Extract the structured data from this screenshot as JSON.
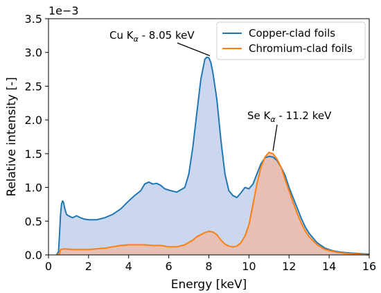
{
  "chart_data": {
    "type": "area",
    "xlabel": "Energy [keV]",
    "ylabel": "Relative intensity [-]",
    "y_scale_note": "1e−3",
    "xlim": [
      0,
      16
    ],
    "ylim": [
      0,
      3.5
    ],
    "xticks": [
      0,
      2,
      4,
      6,
      8,
      10,
      12,
      14,
      16
    ],
    "yticks": [
      0.0,
      0.5,
      1.0,
      1.5,
      2.0,
      2.5,
      3.0,
      3.5
    ],
    "ytick_labels": [
      "0.0",
      "0.5",
      "1.0",
      "1.5",
      "2.0",
      "2.5",
      "3.0",
      "3.5"
    ],
    "grid": false,
    "legend_position": "top-right",
    "series": [
      {
        "name": "Copper-clad foils",
        "color": "#1f77b4",
        "fill": "#c5d3ec",
        "x": [
          0.4,
          0.5,
          0.55,
          0.6,
          0.65,
          0.7,
          0.75,
          0.8,
          0.9,
          1.0,
          1.2,
          1.4,
          1.6,
          1.8,
          2.0,
          2.4,
          2.8,
          3.2,
          3.6,
          4.0,
          4.3,
          4.6,
          4.8,
          5.0,
          5.2,
          5.4,
          5.6,
          5.8,
          6.0,
          6.4,
          6.8,
          7.0,
          7.2,
          7.4,
          7.6,
          7.8,
          7.9,
          8.0,
          8.1,
          8.2,
          8.4,
          8.6,
          8.8,
          9.0,
          9.2,
          9.4,
          9.6,
          9.8,
          10.0,
          10.2,
          10.4,
          10.6,
          10.8,
          11.0,
          11.2,
          11.4,
          11.6,
          11.8,
          12.0,
          12.2,
          12.4,
          12.6,
          12.8,
          13.0,
          13.4,
          13.8,
          14.2,
          14.6,
          15.0,
          15.5,
          16.0
        ],
        "y": [
          0.0,
          0.05,
          0.3,
          0.6,
          0.75,
          0.8,
          0.78,
          0.7,
          0.6,
          0.58,
          0.55,
          0.58,
          0.55,
          0.53,
          0.52,
          0.52,
          0.55,
          0.6,
          0.68,
          0.8,
          0.88,
          0.95,
          1.05,
          1.08,
          1.05,
          1.06,
          1.03,
          0.98,
          0.96,
          0.93,
          1.0,
          1.2,
          1.6,
          2.1,
          2.6,
          2.9,
          2.93,
          2.92,
          2.85,
          2.7,
          2.3,
          1.7,
          1.2,
          0.95,
          0.88,
          0.85,
          0.92,
          1.0,
          0.98,
          1.05,
          1.2,
          1.35,
          1.44,
          1.46,
          1.45,
          1.4,
          1.3,
          1.18,
          1.0,
          0.85,
          0.7,
          0.55,
          0.42,
          0.32,
          0.18,
          0.1,
          0.06,
          0.04,
          0.03,
          0.02,
          0.01
        ]
      },
      {
        "name": "Chromium-clad foils",
        "color": "#ff7f0e",
        "fill": "#f0b7a0",
        "x": [
          0.4,
          0.55,
          0.6,
          0.8,
          1.2,
          1.6,
          2.0,
          2.4,
          2.8,
          3.2,
          3.6,
          4.0,
          4.4,
          4.8,
          5.2,
          5.6,
          6.0,
          6.4,
          6.8,
          7.2,
          7.4,
          7.6,
          7.8,
          8.0,
          8.2,
          8.4,
          8.6,
          8.8,
          9.0,
          9.2,
          9.4,
          9.6,
          9.8,
          10.0,
          10.2,
          10.4,
          10.6,
          10.8,
          11.0,
          11.2,
          11.4,
          11.6,
          11.8,
          12.0,
          12.2,
          12.4,
          12.6,
          12.8,
          13.0,
          13.4,
          13.8,
          14.2,
          14.6,
          15.0,
          15.5,
          16.0
        ],
        "y": [
          0.0,
          0.02,
          0.08,
          0.09,
          0.08,
          0.08,
          0.08,
          0.09,
          0.1,
          0.12,
          0.14,
          0.15,
          0.15,
          0.15,
          0.14,
          0.14,
          0.12,
          0.12,
          0.15,
          0.22,
          0.27,
          0.3,
          0.33,
          0.35,
          0.34,
          0.3,
          0.22,
          0.16,
          0.13,
          0.12,
          0.13,
          0.18,
          0.28,
          0.45,
          0.75,
          1.05,
          1.3,
          1.45,
          1.52,
          1.5,
          1.42,
          1.3,
          1.12,
          0.95,
          0.78,
          0.62,
          0.48,
          0.36,
          0.27,
          0.15,
          0.08,
          0.05,
          0.03,
          0.02,
          0.01,
          0.0
        ]
      }
    ],
    "annotations": [
      {
        "text_main": "Cu K",
        "text_sub": "α",
        "text_rest": " - 8.05 keV",
        "x": 8.05,
        "y": 2.93
      },
      {
        "text_main": "Se K",
        "text_sub": "α",
        "text_rest": " - 11.2 keV",
        "x": 11.2,
        "y": 1.52
      }
    ]
  }
}
